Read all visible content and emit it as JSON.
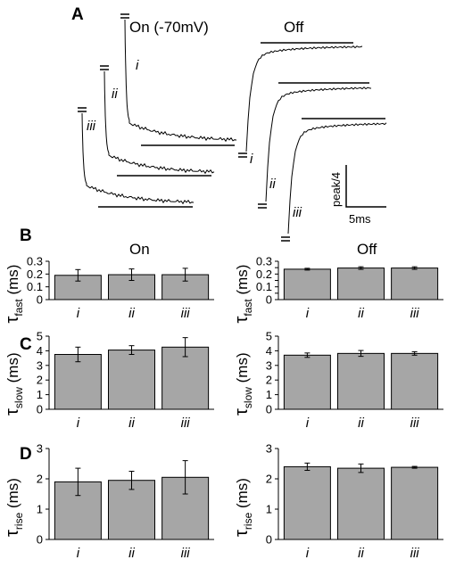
{
  "panel_letters": [
    "A",
    "B",
    "C",
    "D"
  ],
  "panelA": {
    "on_label": "On (-70mV)",
    "off_label": "Off",
    "trace_labels": [
      "i",
      "ii",
      "iii"
    ],
    "scale_y_label": "peak/4",
    "scale_x_label": "5ms"
  },
  "column_titles": [
    "On",
    "Off"
  ],
  "chart_data": [
    {
      "type": "bar",
      "panel": "B",
      "column": "On",
      "title": "On",
      "ylabel_main": "τ",
      "ylabel_sub": "fast",
      "ylabel_unit": " (ms)",
      "categories": [
        "i",
        "ii",
        "iii"
      ],
      "values": [
        0.19,
        0.195,
        0.195
      ],
      "errors": [
        0.045,
        0.045,
        0.05
      ],
      "ylim": [
        0,
        0.3
      ],
      "ticks": [
        0,
        0.1,
        0.2,
        0.3
      ],
      "tick_labels": [
        "0",
        "0.1",
        "0.2",
        "0.3"
      ],
      "bar_color": "#a6a6a6"
    },
    {
      "type": "bar",
      "panel": "B",
      "column": "Off",
      "title": "Off",
      "ylabel_main": "τ",
      "ylabel_sub": "fast",
      "ylabel_unit": " (ms)",
      "categories": [
        "i",
        "ii",
        "iii"
      ],
      "values": [
        0.238,
        0.247,
        0.247
      ],
      "errors": [
        0.007,
        0.01,
        0.01
      ],
      "ylim": [
        0,
        0.3
      ],
      "ticks": [
        0,
        0.05,
        0.1,
        0.15,
        0.2,
        0.25,
        0.3
      ],
      "tick_labels": [
        "0",
        "0.05",
        "0.1",
        "0.15",
        "0.2",
        "0.25",
        "0.3"
      ],
      "bar_color": "#a6a6a6"
    },
    {
      "type": "bar",
      "panel": "C",
      "column": "On",
      "ylabel_main": "τ",
      "ylabel_sub": "slow",
      "ylabel_unit": " (ms)",
      "categories": [
        "i",
        "ii",
        "iii"
      ],
      "values": [
        3.75,
        4.05,
        4.25
      ],
      "errors": [
        0.5,
        0.3,
        0.65
      ],
      "ylim": [
        0,
        5
      ],
      "ticks": [
        0,
        1,
        2,
        3,
        4,
        5
      ],
      "tick_labels": [
        "0",
        "1",
        "2",
        "3",
        "4",
        "5"
      ],
      "bar_color": "#a6a6a6"
    },
    {
      "type": "bar",
      "panel": "C",
      "column": "Off",
      "ylabel_main": "τ",
      "ylabel_sub": "slow",
      "ylabel_unit": " (ms)",
      "categories": [
        "i",
        "ii",
        "iii"
      ],
      "values": [
        3.7,
        3.82,
        3.82
      ],
      "errors": [
        0.15,
        0.2,
        0.12
      ],
      "ylim": [
        0,
        5
      ],
      "ticks": [
        0,
        1,
        2,
        3,
        4,
        5
      ],
      "tick_labels": [
        "0",
        "1",
        "2",
        "3",
        "4",
        "5"
      ],
      "bar_color": "#a6a6a6"
    },
    {
      "type": "bar",
      "panel": "D",
      "column": "On",
      "ylabel_main": "τ",
      "ylabel_sub": "rise",
      "ylabel_unit": " (ms)",
      "categories": [
        "i",
        "ii",
        "iii"
      ],
      "values": [
        1.9,
        1.95,
        2.05
      ],
      "errors": [
        0.45,
        0.3,
        0.55
      ],
      "ylim": [
        0,
        3
      ],
      "ticks": [
        0,
        1,
        2,
        3
      ],
      "tick_labels": [
        "0",
        "1",
        "2",
        "3"
      ],
      "bar_color": "#a6a6a6"
    },
    {
      "type": "bar",
      "panel": "D",
      "column": "Off",
      "ylabel_main": "τ",
      "ylabel_sub": "rise",
      "ylabel_unit": " (ms)",
      "categories": [
        "i",
        "ii",
        "iii"
      ],
      "values": [
        2.4,
        2.35,
        2.38
      ],
      "errors": [
        0.12,
        0.14,
        0.03
      ],
      "ylim": [
        0,
        3
      ],
      "ticks": [
        0,
        1,
        2,
        3
      ],
      "tick_labels": [
        "0",
        "1",
        "2",
        "3"
      ],
      "bar_color": "#a6a6a6"
    }
  ]
}
